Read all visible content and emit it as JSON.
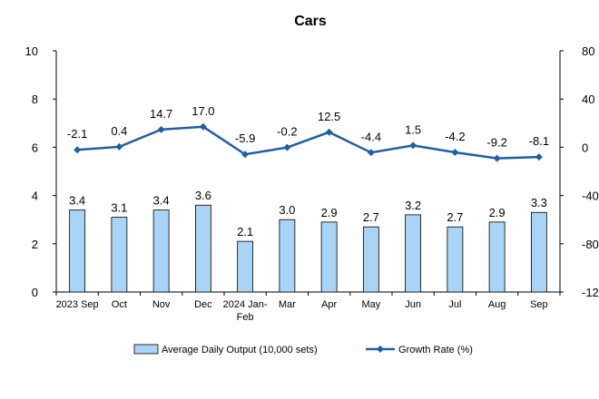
{
  "chart_data": {
    "type": "bar",
    "title": "Cars",
    "categories": [
      "2023 Sep",
      "Oct",
      "Nov",
      "Dec",
      "2024 Jan-Feb",
      "Mar",
      "Apr",
      "May",
      "Jun",
      "Jul",
      "Aug",
      "Sep"
    ],
    "series": [
      {
        "name": "Average Daily Output (10,000 sets)",
        "type": "bar",
        "axis": "left",
        "color": "#a9d4f5",
        "values": [
          3.4,
          3.1,
          3.4,
          3.6,
          2.1,
          3.0,
          2.9,
          2.7,
          3.2,
          2.7,
          2.9,
          3.3
        ],
        "labels": [
          "3.4",
          "3.1",
          "3.4",
          "3.6",
          "2.1",
          "3.0",
          "2.9",
          "2.7",
          "3.2",
          "2.7",
          "2.9",
          "3.3"
        ]
      },
      {
        "name": "Growth Rate (%)",
        "type": "line",
        "axis": "right",
        "color": "#1f5fa8",
        "values": [
          -2.1,
          0.4,
          14.7,
          17.0,
          -5.9,
          -0.2,
          12.5,
          -4.4,
          1.5,
          -4.2,
          -9.2,
          -8.1
        ],
        "labels": [
          "-2.1",
          "0.4",
          "14.7",
          "17.0",
          "-5.9",
          "-0.2",
          "12.5",
          "-4.4",
          "1.5",
          "-4.2",
          "-9.2",
          "-8.1"
        ]
      }
    ],
    "y_left": {
      "min": 0,
      "max": 10,
      "ticks": [
        "0",
        "2",
        "4",
        "6",
        "8",
        "10"
      ]
    },
    "y_right": {
      "min": -120,
      "max": 80,
      "ticks": [
        "-120",
        "-80",
        "-40",
        "0",
        "40",
        "80"
      ]
    },
    "grid": false,
    "legend_position": "bottom"
  }
}
